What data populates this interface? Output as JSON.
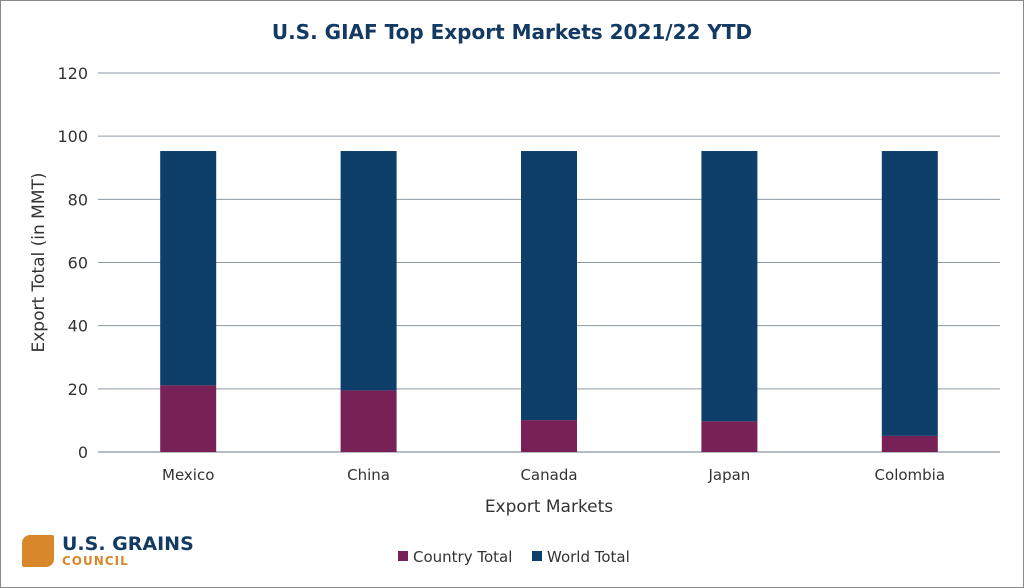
{
  "chart_data": {
    "type": "bar",
    "stacked": true,
    "title": "U.S. GIAF Top Export Markets 2021/22 YTD",
    "xlabel": "Export Markets",
    "ylabel": "Export Total (in MMT)",
    "ylim": [
      0,
      120
    ],
    "yticks": [
      0,
      20,
      40,
      60,
      80,
      100,
      120
    ],
    "grid": true,
    "legend_position": "bottom",
    "categories": [
      "Mexico",
      "China",
      "Canada",
      "Japan",
      "Colombia"
    ],
    "series": [
      {
        "name": "Country Total",
        "color": "#772157",
        "values": [
          21.1,
          19.5,
          10.1,
          9.7,
          5.1
        ]
      },
      {
        "name": "World Total",
        "color": "#0e3f6a",
        "values": [
          74.2,
          75.8,
          85.2,
          85.6,
          90.2
        ]
      }
    ]
  },
  "logo": {
    "line1": "U.S. GRAINS",
    "line2": "COUNCIL"
  }
}
